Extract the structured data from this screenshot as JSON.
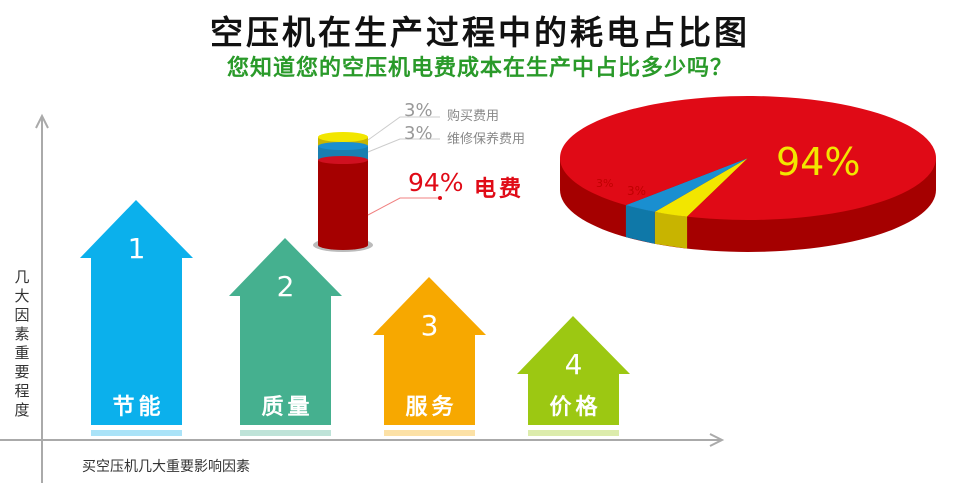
{
  "title": "空压机在生产过程中的耗电占比图",
  "subtitle": "您知道您的空压机电费成本在生产中占比多少吗？",
  "axes": {
    "ylabel": "几大因素重要程度",
    "xlabel": "买空压机几大重要影响因素"
  },
  "arrows": [
    {
      "num": "1",
      "label": "节能",
      "color": "#0bb0ec"
    },
    {
      "num": "2",
      "label": "质量",
      "color": "#45b08f"
    },
    {
      "num": "3",
      "label": "服务",
      "color": "#f7a800"
    },
    {
      "num": "4",
      "label": "价格",
      "color": "#9cc812"
    }
  ],
  "chart_data": {
    "type": "pie",
    "categories": [
      "购买费用",
      "维修保养费用",
      "电费"
    ],
    "values": [
      3,
      3,
      94
    ],
    "data_labels": [
      "3%",
      "3%",
      "94%"
    ],
    "colors": [
      "#f2e600",
      "#1a8fd0",
      "#e00a16"
    ]
  }
}
